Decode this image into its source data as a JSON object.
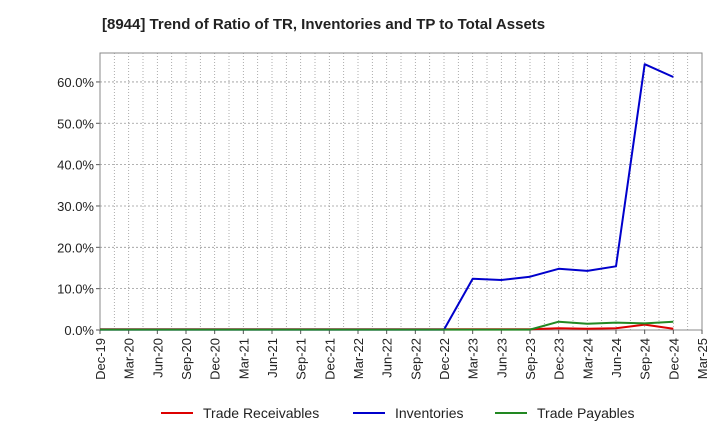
{
  "title": "[8944]  Trend of Ratio of TR, Inventories and TP to Total Assets",
  "colors": {
    "trade_receivables": "#dd0000",
    "inventories": "#0000cc",
    "trade_payables": "#228822"
  },
  "legend": [
    "Trade Receivables",
    "Inventories",
    "Trade Payables"
  ],
  "chart_data": {
    "type": "line",
    "title": "[8944]  Trend of Ratio of TR, Inventories and TP to Total Assets",
    "x_tick_labels": [
      "Dec-19",
      "Mar-20",
      "Jun-20",
      "Sep-20",
      "Dec-20",
      "Mar-21",
      "Jun-21",
      "Sep-21",
      "Dec-21",
      "Mar-22",
      "Jun-22",
      "Sep-22",
      "Dec-22",
      "Mar-23",
      "Jun-23",
      "Sep-23",
      "Dec-23",
      "Mar-24",
      "Jun-24",
      "Sep-24",
      "Dec-24",
      "Mar-25"
    ],
    "y_tick_labels": [
      "0.0%",
      "10.0%",
      "20.0%",
      "30.0%",
      "40.0%",
      "50.0%",
      "60.0%"
    ],
    "ylim": [
      0,
      67
    ],
    "grid": true,
    "legend_position": "bottom",
    "categories": [
      "Dec-19",
      "Mar-20",
      "Jun-20",
      "Sep-20",
      "Dec-20",
      "Mar-21",
      "Jun-21",
      "Sep-21",
      "Dec-21",
      "Mar-22",
      "Jun-22",
      "Sep-22",
      "Dec-22",
      "Mar-23",
      "Jun-23",
      "Sep-23",
      "Dec-23",
      "Mar-24",
      "Jun-24",
      "Sep-24",
      "Dec-24"
    ],
    "series": [
      {
        "name": "Trade Receivables",
        "values": [
          0.2,
          0.2,
          0.2,
          0.2,
          0.2,
          0.2,
          0.2,
          0.2,
          0.2,
          0.2,
          0.2,
          0.2,
          0.2,
          0.2,
          0.2,
          0.2,
          0.4,
          0.3,
          0.4,
          1.3,
          0.3
        ]
      },
      {
        "name": "Inventories",
        "values": [
          0.1,
          0.1,
          0.1,
          0.1,
          0.1,
          0.1,
          0.1,
          0.1,
          0.1,
          0.1,
          0.1,
          0.1,
          0.1,
          12.4,
          12.1,
          12.9,
          14.8,
          14.3,
          15.4,
          64.3,
          61.2
        ]
      },
      {
        "name": "Trade Payables",
        "values": [
          0.1,
          0.1,
          0.1,
          0.1,
          0.1,
          0.1,
          0.1,
          0.1,
          0.1,
          0.1,
          0.1,
          0.1,
          0.1,
          0.1,
          0.1,
          0.1,
          2.0,
          1.5,
          1.8,
          1.6,
          2.0
        ]
      }
    ]
  }
}
